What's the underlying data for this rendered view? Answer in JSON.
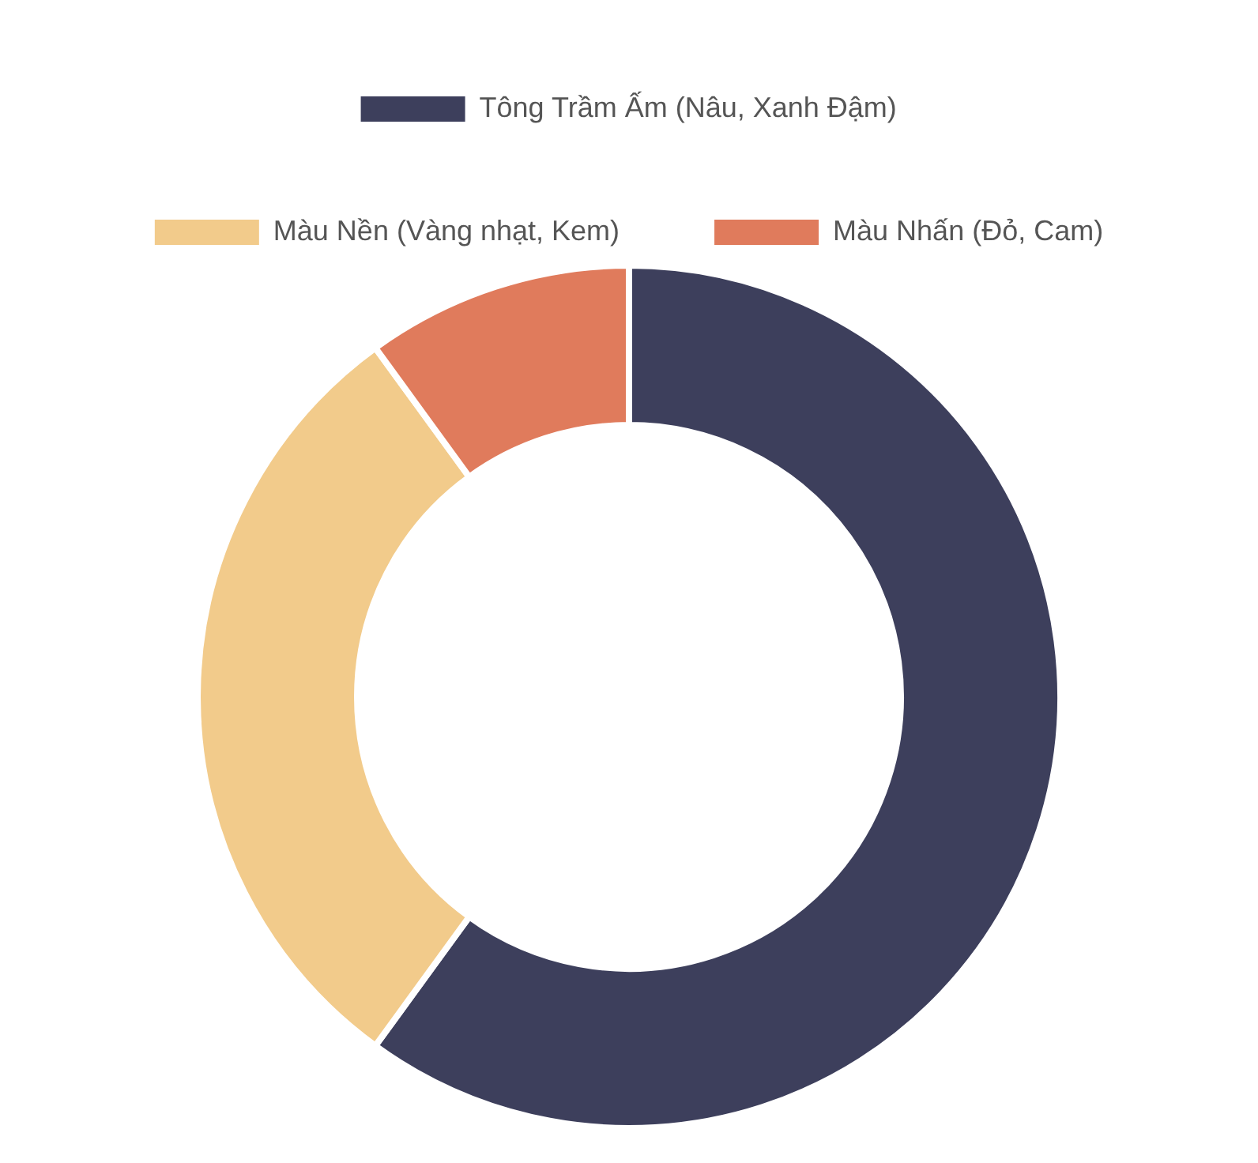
{
  "chart_data": {
    "type": "donut",
    "categories": [
      "Tông Trầm Ấm (Nâu, Xanh Đậm)",
      "Màu Nền (Vàng nhạt, Kem)",
      "Màu Nhấn (Đỏ, Cam)"
    ],
    "values": [
      60,
      30,
      10
    ],
    "colors": [
      "#3d3f5c",
      "#f2cb8b",
      "#e07b5c"
    ],
    "legend": "top"
  }
}
